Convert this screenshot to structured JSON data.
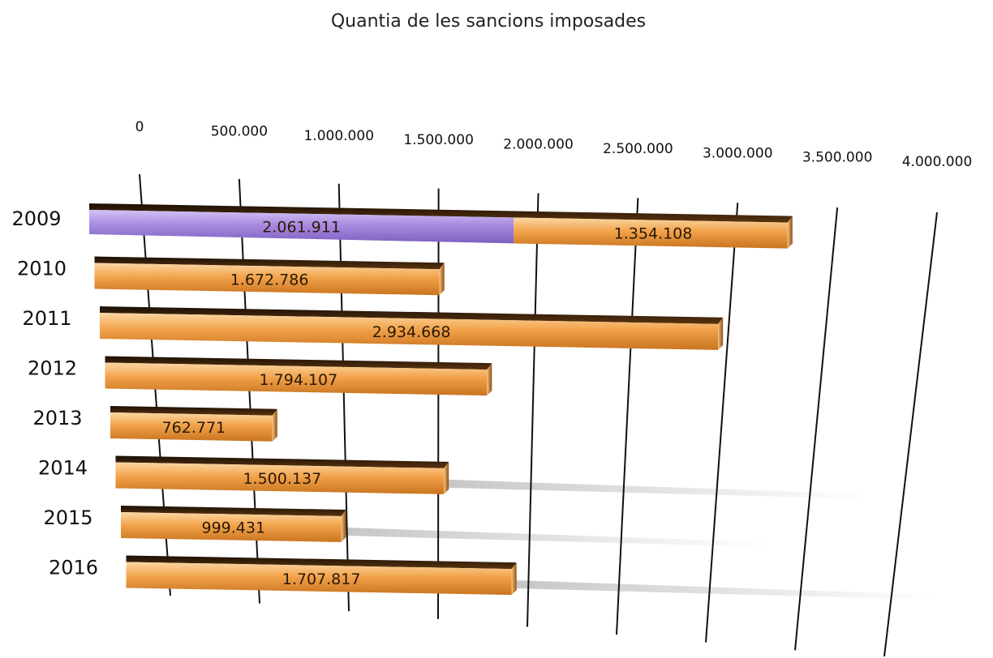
{
  "chart_data": {
    "type": "bar",
    "orientation": "horizontal",
    "stacked": true,
    "title": "Quantia de les sancions imposades",
    "xlabel": "",
    "ylabel": "",
    "xlim": [
      0,
      4000000
    ],
    "x_tick_labels": [
      "0",
      "500.000",
      "1.000.000",
      "1.500.000",
      "2.000.000",
      "2.500.000",
      "3.000.000",
      "3.500.000",
      "4.000.000"
    ],
    "grid": true,
    "legend": "none",
    "categories": [
      "2009",
      "2010",
      "2011",
      "2012",
      "2013",
      "2014",
      "2015",
      "2016"
    ],
    "series": [
      {
        "color": "#a98ae0",
        "values": [
          2061911,
          0,
          0,
          0,
          0,
          0,
          0,
          0
        ],
        "labels": [
          "2.061.911",
          "",
          "",
          "",
          "",
          "",
          "",
          ""
        ]
      },
      {
        "color": "#f2a24a",
        "values": [
          1354108,
          1672786,
          2934668,
          1794107,
          762771,
          1500137,
          999431,
          1707817
        ],
        "labels": [
          "1.354.108",
          "1.672.786",
          "2.934.668",
          "1.794.107",
          "762.771",
          "1.500.137",
          "999.431",
          "1.707.817"
        ]
      }
    ]
  }
}
